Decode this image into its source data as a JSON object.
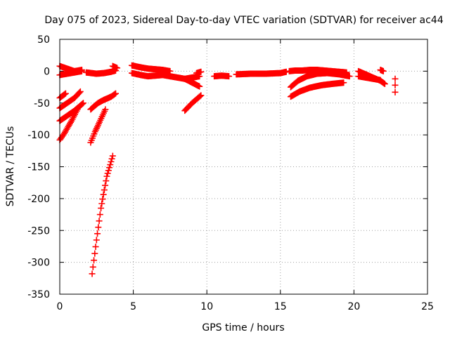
{
  "chart_data": {
    "type": "scatter",
    "title": "Day 075 of 2023, Sidereal Day-to-day VTEC variation (SDTVAR) for receiver ac44",
    "xlabel": "GPS time / hours",
    "ylabel": "SDTVAR / TECUs",
    "xlim": [
      0,
      25
    ],
    "ylim": [
      -350,
      50
    ],
    "xticks": [
      0,
      5,
      10,
      15,
      20,
      25
    ],
    "yticks": [
      50,
      0,
      -50,
      -100,
      -150,
      -200,
      -250,
      -300,
      -350
    ],
    "grid": true,
    "legend": "none",
    "marker": "plus",
    "color": "#ff0000",
    "series": [
      {
        "segments": [
          {
            "x": [
              0.0,
              0.5,
              1.0,
              1.5
            ],
            "y": [
              8,
              4,
              0,
              2
            ]
          },
          {
            "x": [
              0.0,
              0.5,
              1.0,
              1.5
            ],
            "y": [
              -6,
              -4,
              -2,
              0
            ]
          },
          {
            "x": [
              0.0,
              0.4
            ],
            "y": [
              -42,
              -35
            ]
          },
          {
            "x": [
              0.0,
              0.5,
              1.0,
              1.4
            ],
            "y": [
              -58,
              -50,
              -42,
              -32
            ]
          },
          {
            "x": [
              0.0,
              0.5,
              1.0,
              1.6
            ],
            "y": [
              -78,
              -70,
              -62,
              -50
            ]
          },
          {
            "x": [
              0.0,
              0.3,
              0.8,
              1.2
            ],
            "y": [
              -108,
              -98,
              -78,
              -60
            ]
          },
          {
            "x": [
              2.1,
              2.6,
              3.0,
              3.5,
              3.8
            ],
            "y": [
              -60,
              -50,
              -45,
              -40,
              -35
            ]
          },
          {
            "x": [
              2.1,
              2.4,
              2.7,
              3.1
            ],
            "y": [
              -112,
              -95,
              -80,
              -60
            ]
          },
          {
            "x": [
              2.2,
              2.5,
              2.8,
              3.2,
              3.6
            ],
            "y": [
              -318,
              -265,
              -215,
              -165,
              -133
            ]
          },
          {
            "x": [
              1.8,
              2.5,
              3.0,
              3.5,
              3.8
            ],
            "y": [
              -2,
              -4,
              -3,
              -1,
              1
            ]
          },
          {
            "x": [
              3.6,
              3.9
            ],
            "y": [
              8,
              5
            ]
          },
          {
            "x": [
              4.9,
              5.5,
              6.0,
              6.5,
              7.0,
              7.5
            ],
            "y": [
              9,
              6,
              4,
              3,
              2,
              0
            ]
          },
          {
            "x": [
              4.9,
              5.5,
              6.0,
              6.5,
              7.0,
              7.5
            ],
            "y": [
              -3,
              -6,
              -8,
              -7,
              -6,
              -8
            ]
          },
          {
            "x": [
              7.5,
              8.0,
              8.5,
              9.0,
              9.5
            ],
            "y": [
              -8,
              -10,
              -12,
              -10,
              -8
            ]
          },
          {
            "x": [
              8.5,
              9.0,
              9.5
            ],
            "y": [
              -12,
              -18,
              -24
            ]
          },
          {
            "x": [
              9.3,
              9.6
            ],
            "y": [
              -3,
              -1
            ]
          },
          {
            "x": [
              8.5,
              9.0,
              9.6
            ],
            "y": [
              -62,
              -50,
              -38
            ]
          },
          {
            "x": [
              10.5,
              11.0,
              11.5
            ],
            "y": [
              -8,
              -7,
              -8
            ]
          },
          {
            "x": [
              12.0,
              13.0,
              14.0,
              15.0,
              15.4
            ],
            "y": [
              -5,
              -4,
              -4,
              -3,
              -1
            ]
          },
          {
            "x": [
              15.6,
              16.0,
              16.5,
              17.0,
              17.5,
              18.0,
              18.5,
              19.0,
              19.5
            ],
            "y": [
              0,
              1,
              1,
              2,
              2,
              1,
              0,
              -1,
              -2
            ]
          },
          {
            "x": [
              15.7,
              16.2,
              16.8,
              17.5,
              18.2,
              19.0,
              19.7
            ],
            "y": [
              -25,
              -15,
              -8,
              -4,
              -3,
              -5,
              -8
            ]
          },
          {
            "x": [
              15.7,
              16.3,
              17.0,
              17.8,
              18.5,
              19.3
            ],
            "y": [
              -40,
              -32,
              -26,
              -22,
              -20,
              -18
            ]
          },
          {
            "x": [
              20.3,
              20.8,
              21.3,
              21.8,
              22.1
            ],
            "y": [
              0,
              -5,
              -10,
              -15,
              -20
            ]
          },
          {
            "x": [
              20.3,
              20.8,
              21.3,
              21.8
            ],
            "y": [
              -8,
              -10,
              -12,
              -14
            ]
          },
          {
            "x": [
              21.8,
              22.0
            ],
            "y": [
              2,
              0
            ]
          },
          {
            "x": [
              22.8,
              22.8,
              22.8
            ],
            "y": [
              -12,
              -22,
              -33
            ]
          }
        ]
      }
    ]
  }
}
